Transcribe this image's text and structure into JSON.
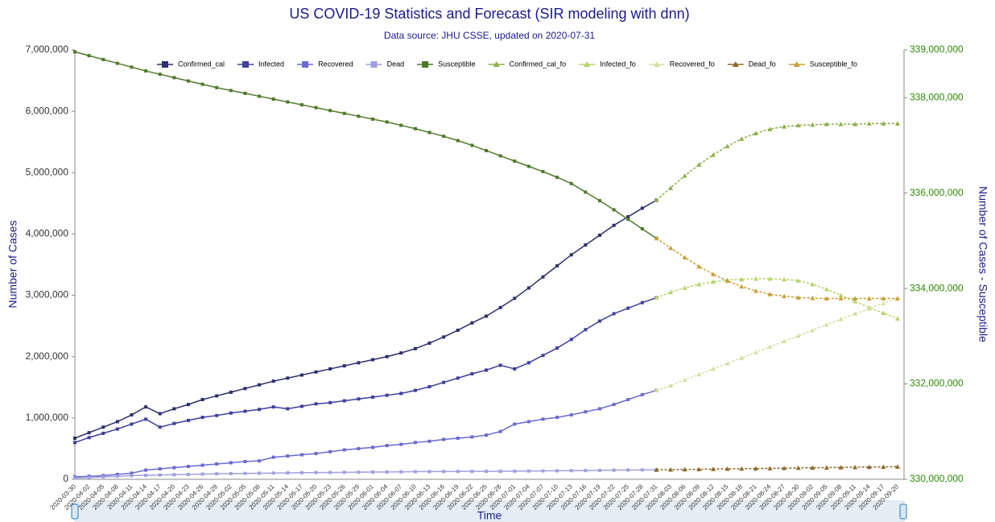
{
  "chart_data": {
    "type": "line",
    "title": "US COVID-19 Statistics and Forecast (SIR modeling with dnn)",
    "subtitle": "Data source: JHU CSSE, updated on 2020-07-31",
    "x_label": "Time",
    "y_label": "Number of Cases",
    "y2_label": "Number of Cases - Susceptible",
    "legend": "top",
    "categories": [
      "2020-03-30",
      "2020-04-02",
      "2020-04-05",
      "2020-04-08",
      "2020-04-11",
      "2020-04-14",
      "2020-04-17",
      "2020-04-20",
      "2020-04-23",
      "2020-04-26",
      "2020-04-29",
      "2020-05-02",
      "2020-05-05",
      "2020-05-08",
      "2020-05-11",
      "2020-05-14",
      "2020-05-17",
      "2020-05-20",
      "2020-05-23",
      "2020-05-26",
      "2020-05-29",
      "2020-06-01",
      "2020-06-04",
      "2020-06-07",
      "2020-06-10",
      "2020-06-13",
      "2020-06-16",
      "2020-06-19",
      "2020-06-22",
      "2020-06-25",
      "2020-06-28",
      "2020-07-01",
      "2020-07-04",
      "2020-07-07",
      "2020-07-10",
      "2020-07-13",
      "2020-07-16",
      "2020-07-19",
      "2020-07-22",
      "2020-07-25",
      "2020-07-28",
      "2020-07-31",
      "2020-08-03",
      "2020-08-06",
      "2020-08-09",
      "2020-08-12",
      "2020-08-15",
      "2020-08-18",
      "2020-08-21",
      "2020-08-24",
      "2020-08-27",
      "2020-08-30",
      "2020-09-02",
      "2020-09-05",
      "2020-09-08",
      "2020-09-11",
      "2020-09-14",
      "2020-09-17",
      "2020-09-20"
    ],
    "ylim": [
      0,
      7000000
    ],
    "yticks": [
      0,
      {
        "value": 1000000,
        "label": "1,000,000"
      },
      {
        "value": 2000000,
        "label": "2,000,000"
      },
      {
        "value": 3000000,
        "label": "3,000,000"
      },
      {
        "value": 4000000,
        "label": "4,000,000"
      },
      {
        "value": 5000000,
        "label": "5,000,000"
      },
      {
        "value": 6000000,
        "label": "6,000,000"
      },
      {
        "value": 7000000,
        "label": "7,000,000"
      }
    ],
    "y2lim": [
      330000000,
      339000000
    ],
    "y2ticks": [
      {
        "value": 330000000,
        "label": "330,000,000"
      },
      {
        "value": 332000000,
        "label": "332,000,000"
      },
      {
        "value": 334000000,
        "label": "334,000,000"
      },
      {
        "value": 336000000,
        "label": "336,000,000"
      },
      {
        "value": 338000000,
        "label": "338,000,000"
      },
      {
        "value": 339000000,
        "label": "339,000,000"
      }
    ],
    "series": [
      {
        "name": "Confirmed_cal",
        "color": "#2e2e6e",
        "marker": "square",
        "values": [
          670000,
          760000,
          850000,
          940000,
          1050000,
          1180000,
          1070000,
          1150000,
          1220000,
          1300000,
          1360000,
          1420000,
          1480000,
          1540000,
          1600000,
          1650000,
          1700000,
          1750000,
          1800000,
          1850000,
          1900000,
          1950000,
          2000000,
          2060000,
          2130000,
          2220000,
          2320000,
          2430000,
          2550000,
          2660000,
          2800000,
          2950000,
          3120000,
          3300000,
          3480000,
          3660000,
          3820000,
          3980000,
          4140000,
          4280000,
          4420000,
          4550000,
          null,
          null,
          null,
          null,
          null,
          null,
          null,
          null,
          null,
          null,
          null,
          null,
          null,
          null,
          null,
          null,
          null
        ]
      },
      {
        "name": "Infected",
        "color": "#3f3f9f",
        "marker": "square",
        "values": [
          600000,
          680000,
          750000,
          820000,
          900000,
          980000,
          850000,
          910000,
          960000,
          1010000,
          1040000,
          1080000,
          1110000,
          1140000,
          1180000,
          1150000,
          1190000,
          1230000,
          1250000,
          1280000,
          1310000,
          1340000,
          1370000,
          1400000,
          1450000,
          1510000,
          1580000,
          1650000,
          1720000,
          1780000,
          1860000,
          1800000,
          1900000,
          2020000,
          2140000,
          2280000,
          2440000,
          2580000,
          2700000,
          2790000,
          2880000,
          2960000,
          null,
          null,
          null,
          null,
          null,
          null,
          null,
          null,
          null,
          null,
          null,
          null,
          null,
          null,
          null,
          null,
          null
        ]
      },
      {
        "name": "Recovered",
        "color": "#6a6ad0",
        "marker": "square",
        "values": [
          40000,
          50000,
          60000,
          80000,
          100000,
          150000,
          170000,
          190000,
          210000,
          230000,
          250000,
          270000,
          290000,
          300000,
          360000,
          380000,
          400000,
          420000,
          450000,
          480000,
          500000,
          520000,
          550000,
          570000,
          600000,
          620000,
          650000,
          670000,
          690000,
          720000,
          780000,
          900000,
          940000,
          980000,
          1010000,
          1050000,
          1100000,
          1150000,
          1220000,
          1300000,
          1380000,
          1450000,
          null,
          null,
          null,
          null,
          null,
          null,
          null,
          null,
          null,
          null,
          null,
          null,
          null,
          null,
          null,
          null,
          null
        ]
      },
      {
        "name": "Dead",
        "color": "#a0a0e0",
        "marker": "square",
        "values": [
          20000,
          30000,
          40000,
          50000,
          60000,
          65000,
          70000,
          75000,
          80000,
          85000,
          90000,
          93000,
          96000,
          99000,
          102000,
          105000,
          108000,
          110000,
          112000,
          114000,
          116000,
          118000,
          120000,
          122000,
          124000,
          126000,
          127000,
          128000,
          129000,
          130000,
          131000,
          133000,
          135000,
          137000,
          139000,
          141000,
          143000,
          146000,
          149000,
          151000,
          153000,
          155000,
          null,
          null,
          null,
          null,
          null,
          null,
          null,
          null,
          null,
          null,
          null,
          null,
          null,
          null,
          null,
          null,
          null
        ]
      },
      {
        "name": "Susceptible",
        "color": "#4f7a2a",
        "marker": "square",
        "axis": "y2",
        "values": [
          338960000,
          338880000,
          338800000,
          338720000,
          338640000,
          338560000,
          338490000,
          338420000,
          338350000,
          338280000,
          338210000,
          338150000,
          338090000,
          338030000,
          337970000,
          337910000,
          337850000,
          337790000,
          337730000,
          337670000,
          337610000,
          337550000,
          337490000,
          337420000,
          337350000,
          337270000,
          337190000,
          337100000,
          337000000,
          336890000,
          336780000,
          336670000,
          336560000,
          336450000,
          336330000,
          336200000,
          336020000,
          335840000,
          335650000,
          335450000,
          335250000,
          335050000,
          null,
          null,
          null,
          null,
          null,
          null,
          null,
          null,
          null,
          null,
          null,
          null,
          null,
          null,
          null,
          null,
          null
        ]
      },
      {
        "name": "Confirmed_cal_fo",
        "color": "#8fae4a",
        "marker": "triangle",
        "values": [
          null,
          null,
          null,
          null,
          null,
          null,
          null,
          null,
          null,
          null,
          null,
          null,
          null,
          null,
          null,
          null,
          null,
          null,
          null,
          null,
          null,
          null,
          null,
          null,
          null,
          null,
          null,
          null,
          null,
          null,
          null,
          null,
          null,
          null,
          null,
          null,
          null,
          null,
          null,
          null,
          null,
          4550000,
          4750000,
          4950000,
          5130000,
          5290000,
          5430000,
          5550000,
          5640000,
          5710000,
          5750000,
          5770000,
          5780000,
          5790000,
          5790000,
          5790000,
          5800000,
          5800000,
          5800000
        ]
      },
      {
        "name": "Infected_fo",
        "color": "#b8d36a",
        "marker": "triangle",
        "values": [
          null,
          null,
          null,
          null,
          null,
          null,
          null,
          null,
          null,
          null,
          null,
          null,
          null,
          null,
          null,
          null,
          null,
          null,
          null,
          null,
          null,
          null,
          null,
          null,
          null,
          null,
          null,
          null,
          null,
          null,
          null,
          null,
          null,
          null,
          null,
          null,
          null,
          null,
          null,
          null,
          null,
          2960000,
          3050000,
          3120000,
          3180000,
          3220000,
          3250000,
          3260000,
          3270000,
          3270000,
          3260000,
          3240000,
          3180000,
          3100000,
          3000000,
          2900000,
          2800000,
          2710000,
          2620000
        ]
      },
      {
        "name": "Recovered_fo",
        "color": "#d6e0a0",
        "marker": "triangle",
        "values": [
          null,
          null,
          null,
          null,
          null,
          null,
          null,
          null,
          null,
          null,
          null,
          null,
          null,
          null,
          null,
          null,
          null,
          null,
          null,
          null,
          null,
          null,
          null,
          null,
          null,
          null,
          null,
          null,
          null,
          null,
          null,
          null,
          null,
          null,
          null,
          null,
          null,
          null,
          null,
          null,
          null,
          1450000,
          1530000,
          1620000,
          1710000,
          1800000,
          1890000,
          1980000,
          2070000,
          2160000,
          2250000,
          2340000,
          2430000,
          2520000,
          2610000,
          2700000,
          2780000,
          2870000,
          2950000
        ]
      },
      {
        "name": "Dead_fo",
        "color": "#8b6a2a",
        "marker": "triangle",
        "values": [
          null,
          null,
          null,
          null,
          null,
          null,
          null,
          null,
          null,
          null,
          null,
          null,
          null,
          null,
          null,
          null,
          null,
          null,
          null,
          null,
          null,
          null,
          null,
          null,
          null,
          null,
          null,
          null,
          null,
          null,
          null,
          null,
          null,
          null,
          null,
          null,
          null,
          null,
          null,
          null,
          null,
          155000,
          158000,
          161000,
          164000,
          167000,
          170000,
          173000,
          176000,
          179000,
          182000,
          185000,
          188000,
          191000,
          194000,
          197000,
          200000,
          203000,
          205000
        ]
      },
      {
        "name": "Susceptible_fo",
        "color": "#c8a038",
        "marker": "triangle",
        "axis": "y2",
        "values": [
          null,
          null,
          null,
          null,
          null,
          null,
          null,
          null,
          null,
          null,
          null,
          null,
          null,
          null,
          null,
          null,
          null,
          null,
          null,
          null,
          null,
          null,
          null,
          null,
          null,
          null,
          null,
          null,
          null,
          null,
          null,
          null,
          null,
          null,
          null,
          null,
          null,
          null,
          null,
          null,
          null,
          335050000,
          334850000,
          334650000,
          334460000,
          334300000,
          334160000,
          334040000,
          333950000,
          333880000,
          333840000,
          333810000,
          333800000,
          333790000,
          333790000,
          333790000,
          333790000,
          333790000,
          333790000
        ]
      }
    ]
  }
}
